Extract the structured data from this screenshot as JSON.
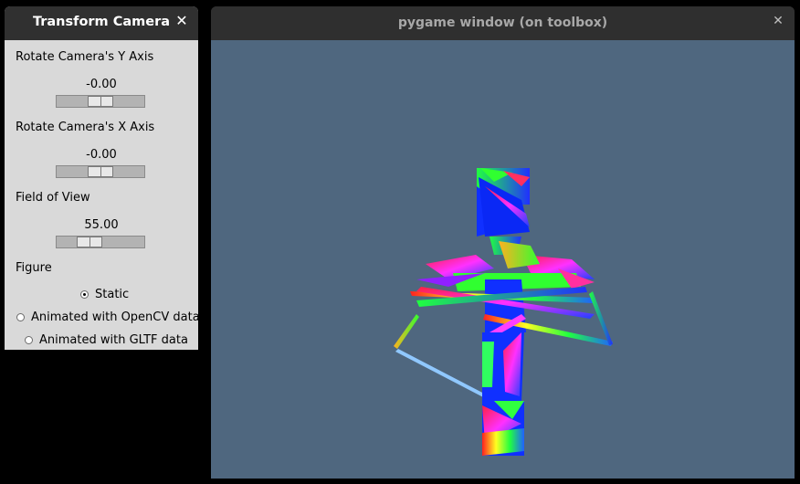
{
  "control_window": {
    "title": "Transform Camera",
    "close_glyph": "✕",
    "sliders": [
      {
        "label": "Rotate Camera's Y Axis",
        "value_text": "-0.00"
      },
      {
        "label": "Rotate Camera's X Axis",
        "value_text": "-0.00"
      },
      {
        "label": "Field of View",
        "value_text": "55.00"
      }
    ],
    "figure": {
      "label": "Figure",
      "options": [
        {
          "label": "Static",
          "selected": true
        },
        {
          "label": "Animated with OpenCV data",
          "selected": false
        },
        {
          "label": "Animated with GLTF data",
          "selected": false
        }
      ]
    }
  },
  "pygame_window": {
    "title": "pygame window (on toolbox)",
    "close_glyph": "✕",
    "background_color": "#4f677f"
  }
}
